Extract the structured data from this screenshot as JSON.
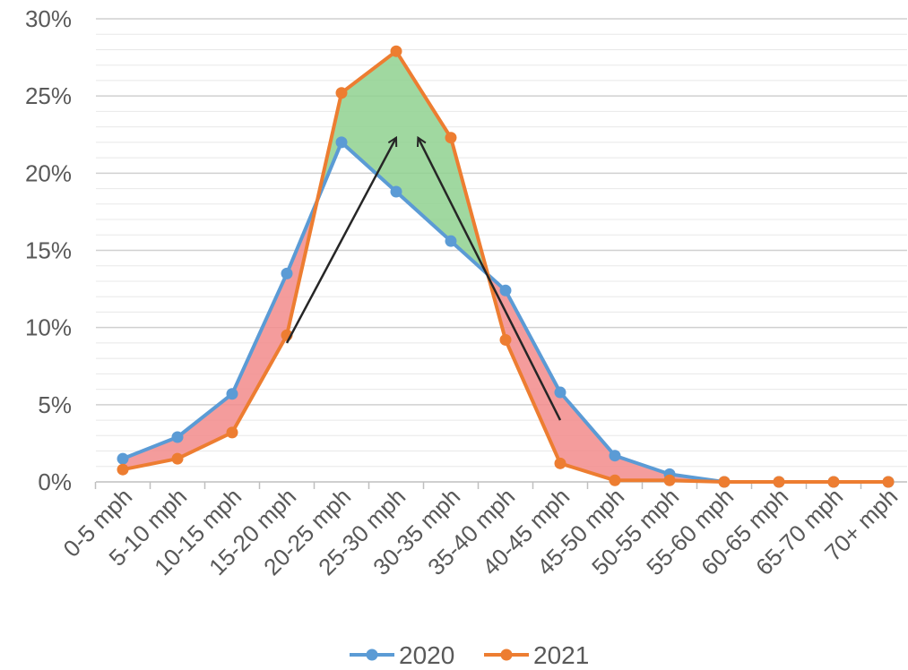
{
  "chart_data": {
    "type": "line",
    "categories": [
      "0-5 mph",
      "5-10 mph",
      "10-15 mph",
      "15-20 mph",
      "20-25 mph",
      "25-30 mph",
      "30-35 mph",
      "35-40 mph",
      "40-45 mph",
      "45-50 mph",
      "50-55 mph",
      "55-60 mph",
      "60-65 mph",
      "65-70 mph",
      "70+ mph"
    ],
    "series": [
      {
        "name": "2020",
        "color": "#5b9bd5",
        "values": [
          1.5,
          2.9,
          5.7,
          13.5,
          22.0,
          18.8,
          15.6,
          12.4,
          5.8,
          1.7,
          0.5,
          0,
          0,
          0,
          0
        ]
      },
      {
        "name": "2021",
        "color": "#ed7d31",
        "values": [
          0.8,
          1.5,
          3.2,
          9.5,
          25.2,
          27.9,
          22.3,
          9.2,
          1.2,
          0.1,
          0.1,
          0,
          0,
          0,
          0
        ]
      }
    ],
    "yticks": [
      "0%",
      "5%",
      "10%",
      "15%",
      "20%",
      "25%",
      "30%"
    ],
    "ylim": [
      0,
      30
    ],
    "grid": true,
    "legend": "bottom",
    "fills": {
      "increase": "#8fd18f",
      "decrease": "#f28b8b"
    },
    "annotations": [
      {
        "type": "arrow",
        "from": [
          3,
          9.0
        ],
        "to": [
          5,
          22.3
        ]
      },
      {
        "type": "arrow",
        "from": [
          8,
          4.0
        ],
        "to": [
          5.4,
          22.3
        ]
      }
    ]
  }
}
